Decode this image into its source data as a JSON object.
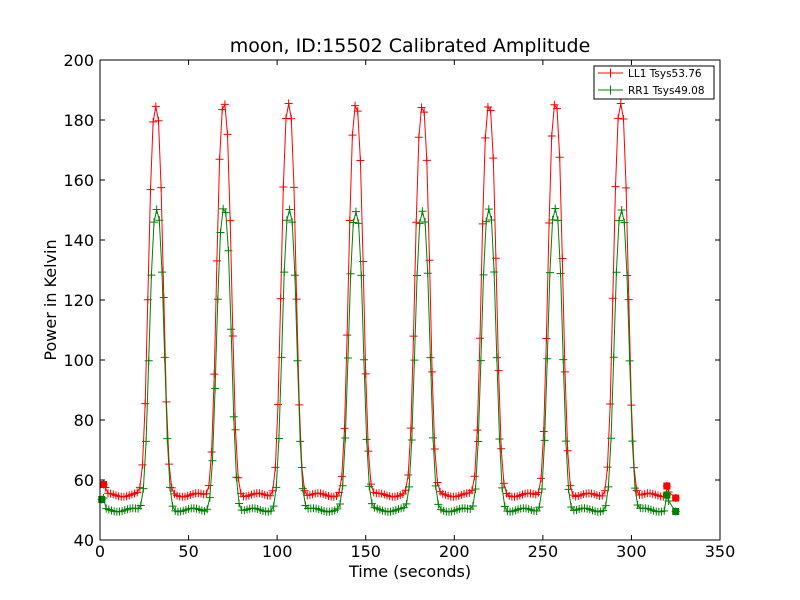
{
  "chart_data": {
    "type": "line",
    "title": "moon, ID:15502 Calibrated Amplitude",
    "xlabel": "Time (seconds)",
    "ylabel": "Power in Kelvin",
    "xlim": [
      0,
      350
    ],
    "ylim": [
      40,
      200
    ],
    "xticks": [
      "0",
      "50",
      "100",
      "150",
      "200",
      "250",
      "300",
      "350"
    ],
    "yticks": [
      "40",
      "60",
      "80",
      "100",
      "120",
      "140",
      "160",
      "180",
      "200"
    ],
    "grid": false,
    "legend_position": "top-right",
    "sample_interval_seconds": 1.5,
    "series": [
      {
        "name": "LL1 Tsys53.76",
        "color": "#ff0000",
        "baseline": 55,
        "peak": 185,
        "peak_centers": [
          31.5,
          70,
          106.5,
          144.5,
          182,
          219.5,
          257,
          294
        ],
        "start_points": [
          [
            2,
            58.5
          ],
          [
            3,
            57.5
          ]
        ],
        "end_points": [
          [
            320,
            58
          ],
          [
            321,
            56
          ],
          [
            325,
            54
          ]
        ]
      },
      {
        "name": "RR1 Tsys49.08",
        "color": "#008000",
        "baseline": 50,
        "peak": 150,
        "peak_centers": [
          32,
          70,
          107,
          144.5,
          182,
          219.5,
          257,
          294.5
        ],
        "start_points": [
          [
            1,
            53.5
          ],
          [
            2,
            54
          ]
        ],
        "end_points": [
          [
            320,
            55
          ],
          [
            321,
            53
          ],
          [
            325,
            49.5
          ]
        ]
      }
    ]
  }
}
